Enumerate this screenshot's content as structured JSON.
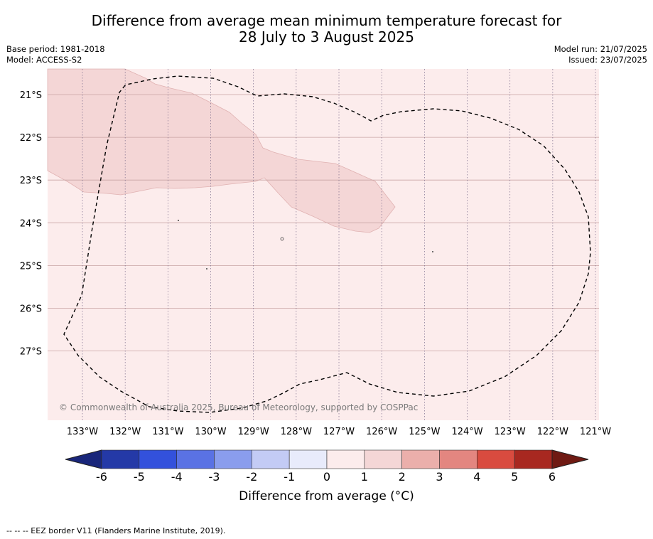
{
  "title": {
    "line1": "Difference from average mean minimum temperature forecast for",
    "line2": "28 July to 3 August 2025"
  },
  "header_left": {
    "base_period": "Base period: 1981-2018",
    "model": "Model: ACCESS-S2"
  },
  "header_right": {
    "model_run": "Model run: 21/07/2025",
    "issued": "Issued: 23/07/2025"
  },
  "map": {
    "lat_labels": [
      "21°S",
      "22°S",
      "23°S",
      "24°S",
      "25°S",
      "26°S",
      "27°S"
    ],
    "lon_labels": [
      "133°W",
      "132°W",
      "131°W",
      "130°W",
      "129°W",
      "128°W",
      "127°W",
      "126°W",
      "125°W",
      "124°W",
      "123°W",
      "122°W",
      "121°W"
    ],
    "copyright": "© Commonwealth of Australia 2025, Bureau of Meteorology, supported by COSPPac",
    "background_category": "0 to 1",
    "highlight_category": "1 to 2",
    "overlay": "EEZ border (dashed)"
  },
  "colorbar": {
    "ticks": [
      "-6",
      "-5",
      "-4",
      "-3",
      "-2",
      "-1",
      "0",
      "1",
      "2",
      "3",
      "4",
      "5",
      "6"
    ],
    "colors": [
      "#2439a7",
      "#3351dc",
      "#5a72e4",
      "#8a9ded",
      "#c3cbf5",
      "#e8ebfb",
      "#fcecec",
      "#f4d6d6",
      "#ebafab",
      "#e38680",
      "#d94b3f",
      "#a82820"
    ],
    "min_extend_color": "#19267a",
    "max_extend_color": "#6f1a13",
    "label": "Difference from average ($^\\circ$C)",
    "label_display": "Difference from average (°C)"
  },
  "footnote": "--  --  -- EEZ border V11 (Flanders Marine Institute, 2019)."
}
